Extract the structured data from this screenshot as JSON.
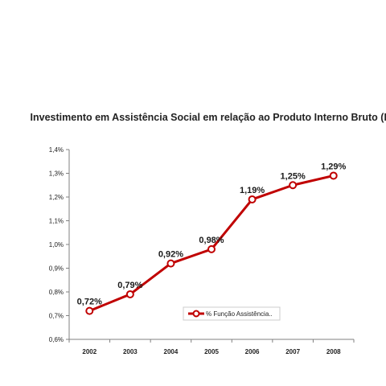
{
  "chart_data": {
    "type": "line",
    "title": "Investimento em Assistência Social em relação ao Produto Interno Bruto (PIB)",
    "xlabel": "",
    "ylabel": "",
    "categories": [
      "2002",
      "2003",
      "2004",
      "2005",
      "2006",
      "2007",
      "2008"
    ],
    "series": [
      {
        "name": "% Função Assistência..",
        "values": [
          0.72,
          0.79,
          0.92,
          0.98,
          1.19,
          1.25,
          1.29
        ],
        "labels": [
          "0,72%",
          "0,79%",
          "0,92%",
          "0,98%",
          "1,19%",
          "1,25%",
          "1,29%"
        ],
        "color": "#c00000"
      }
    ],
    "ylim": [
      0.6,
      1.4
    ],
    "yticks": [
      0.6,
      0.7,
      0.8,
      0.9,
      1.0,
      1.1,
      1.2,
      1.3,
      1.4
    ],
    "ytick_labels": [
      "0,6%",
      "0,7%",
      "0,8%",
      "0,9%",
      "1,0%",
      "1,1%",
      "1,2%",
      "1,3%",
      "1,4%"
    ],
    "grid": false,
    "legend": "bottom-right"
  }
}
